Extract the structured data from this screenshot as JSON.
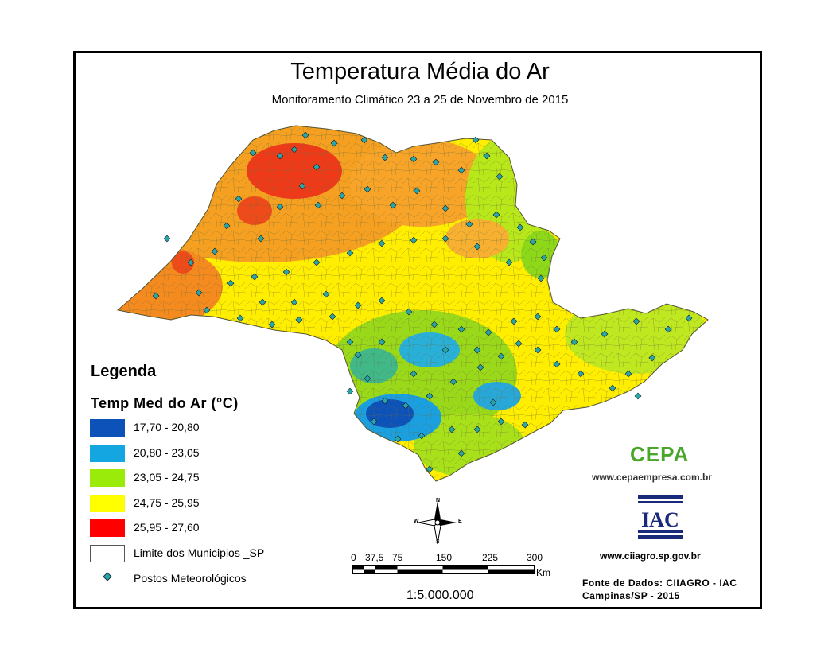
{
  "title": "Temperatura Média do Ar",
  "subtitle": "Monitoramento Climático 23 a 25 de Novembro de 2015",
  "legend": {
    "heading": "Legenda",
    "subheading": "Temp Med do Ar (°C)",
    "classes": [
      {
        "label": "17,70 - 20,80",
        "color": "#0d52b8"
      },
      {
        "label": "20,80 - 23,05",
        "color": "#14a6e0"
      },
      {
        "label": "23,05 - 24,75",
        "color": "#9aeb0a"
      },
      {
        "label": "24,75 - 25,95",
        "color": "#ffff00"
      },
      {
        "label": "25,95 - 27,60",
        "color": "#ff0000"
      }
    ],
    "boundary_label": "Limite dos Municipios _SP",
    "stations_label": "Postos Meteorológicos"
  },
  "scale": {
    "ticks": [
      "0",
      "37,5",
      "75",
      "150",
      "225",
      "300"
    ],
    "unit": "Km",
    "ratio": "1:5.000.000"
  },
  "compass": {
    "n": "N",
    "s": "S",
    "e": "E",
    "w": "W"
  },
  "logos": {
    "cepa_text": "CEPA",
    "cepa_url": "www.cepaempresa.com.br",
    "iac_text": "IAC",
    "iac_url": "www.ciiagro.sp.gov.br"
  },
  "source": {
    "line1": "Fonte de Dados: CIIAGRO - IAC",
    "line2": "Campinas/SP - 2015"
  },
  "colors": {
    "frame": "#000000",
    "orange": "#f58a1e",
    "station": "#2aa6a6"
  }
}
